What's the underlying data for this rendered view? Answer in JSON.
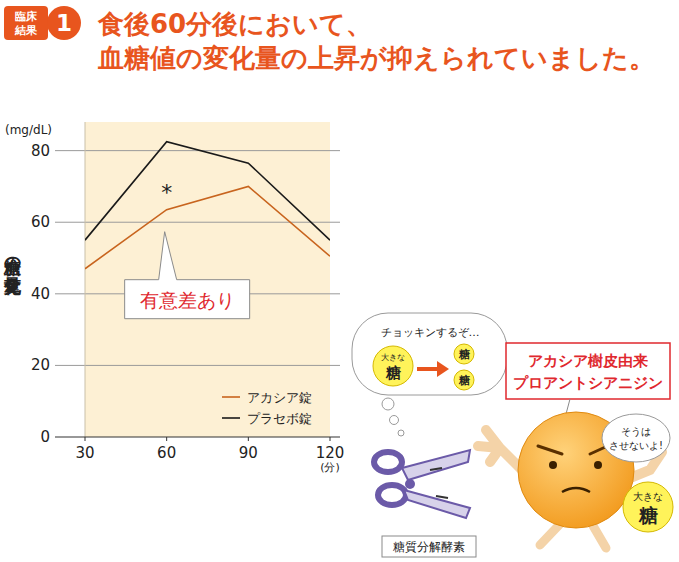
{
  "header": {
    "badge": [
      "臨床",
      "結果"
    ],
    "badge_number": "1",
    "title_lines": [
      "食後60分後において、",
      "血糖値の変化量の上昇が抑えられていました。"
    ]
  },
  "chart_data": {
    "type": "line",
    "y_label": "血糖の変化量",
    "y_unit": "(mg/dL)",
    "x_unit": "(分)",
    "x": [
      30,
      60,
      90,
      120
    ],
    "xlim": [
      30,
      120
    ],
    "xticks": [
      30,
      60,
      90,
      120
    ],
    "ylim": [
      0,
      88
    ],
    "yticks": [
      0,
      20,
      40,
      60,
      80
    ],
    "grid": true,
    "legend": "lower right",
    "series": [
      {
        "name": "アカシア錠",
        "color": "#c8641e",
        "values": [
          47,
          63.5,
          70,
          50.5
        ]
      },
      {
        "name": "プラセボ錠",
        "color": "#1a1a1a",
        "values": [
          55,
          82.5,
          76.5,
          55
        ]
      }
    ],
    "annotations": [
      {
        "text": "*",
        "x": 60
      },
      {
        "text": "有意差あり",
        "x": 60
      }
    ]
  },
  "illustration": {
    "thought": "チョッキンするぞ…",
    "big_sugar": [
      "大きな",
      "糖"
    ],
    "small_sugar": [
      "糖",
      "糖"
    ],
    "enzyme": "糖質分解酵素",
    "compound": [
      "アカシア樹皮由来",
      "プロアントシアニジン"
    ],
    "speech": [
      "そうは",
      "させないよ!"
    ],
    "held_sugar": [
      "大きな",
      "糖"
    ]
  }
}
